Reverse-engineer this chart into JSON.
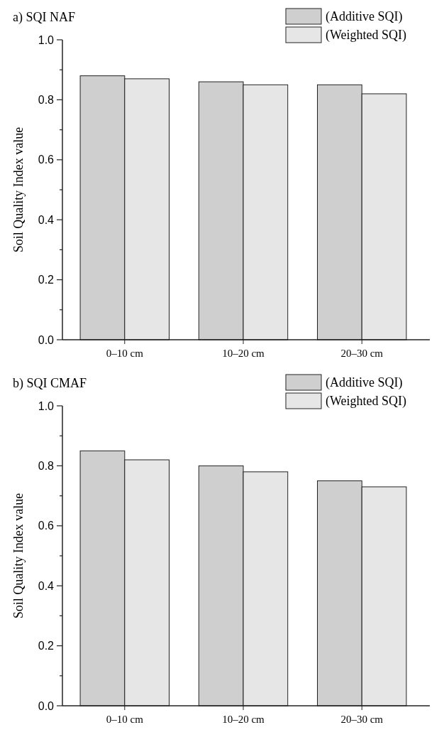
{
  "chart_data": [
    {
      "type": "bar",
      "title": "a) SQI NAF",
      "ylabel": "Soil Quality Index value",
      "categories": [
        "0–10 cm",
        "10–20 cm",
        "20–30 cm"
      ],
      "series": [
        {
          "name": "(Additive SQI)",
          "color": "#cfcfcf",
          "values": [
            0.88,
            0.86,
            0.85
          ]
        },
        {
          "name": "(Weighted SQI)",
          "color": "#e6e6e6",
          "values": [
            0.87,
            0.85,
            0.82
          ]
        }
      ],
      "ylim": [
        0,
        1
      ],
      "yticks": [
        {
          "value": 0,
          "label": "0.0"
        },
        {
          "value": 0.1,
          "label": null
        },
        0.2,
        {
          "value": 0.3,
          "label": null
        },
        0.4,
        {
          "value": 0.5,
          "label": null
        },
        0.6,
        {
          "value": 0.7,
          "label": null
        },
        0.8,
        {
          "value": 0.9,
          "label": null
        },
        {
          "value": 1,
          "label": "1.0"
        }
      ],
      "legend": "top right",
      "grid": false
    },
    {
      "type": "bar",
      "title": "b) SQI CMAF",
      "ylabel": "Soil Quality Index value",
      "categories": [
        "0–10 cm",
        "10–20 cm",
        "20–30 cm"
      ],
      "series": [
        {
          "name": "(Additive SQI)",
          "color": "#cfcfcf",
          "values": [
            0.85,
            0.8,
            0.75
          ]
        },
        {
          "name": "(Weighted SQI)",
          "color": "#e6e6e6",
          "values": [
            0.82,
            0.78,
            0.73
          ]
        }
      ],
      "ylim": [
        0,
        1
      ],
      "yticks": [
        {
          "value": 0,
          "label": "0.0"
        },
        {
          "value": 0.1,
          "label": null
        },
        0.2,
        {
          "value": 0.3,
          "label": null
        },
        0.4,
        {
          "value": 0.5,
          "label": null
        },
        0.6,
        {
          "value": 0.7,
          "label": null
        },
        0.8,
        {
          "value": 0.9,
          "label": null
        },
        {
          "value": 1,
          "label": "1.0"
        }
      ],
      "legend": "top right",
      "grid": false
    }
  ]
}
